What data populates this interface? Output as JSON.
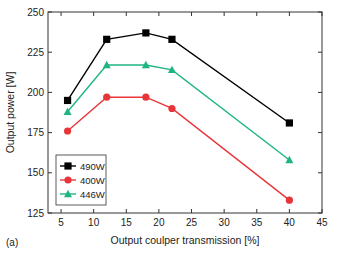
{
  "chart_data": {
    "type": "line",
    "x_label": "Output coulper transmission [%]",
    "y_label": "Output power [W]",
    "annotation": "(a)",
    "x": [
      6,
      12,
      18,
      22,
      40
    ],
    "series": [
      {
        "name": "490W",
        "color": "#000000",
        "marker": "square",
        "values": [
          195,
          233,
          237,
          233,
          181
        ]
      },
      {
        "name": "400W",
        "color": "#e8353a",
        "marker": "circle",
        "values": [
          176,
          197,
          197,
          190,
          133
        ]
      },
      {
        "name": "446W",
        "color": "#1fb583",
        "marker": "triangle",
        "values": [
          188,
          217,
          217,
          214,
          158
        ]
      }
    ],
    "xlim": [
      3,
      45
    ],
    "xticks": [
      5,
      10,
      15,
      20,
      25,
      30,
      35,
      40,
      45
    ],
    "ylim": [
      125,
      250
    ],
    "yticks": [
      125,
      150,
      175,
      200,
      225,
      250
    ],
    "legend": "lower left"
  }
}
